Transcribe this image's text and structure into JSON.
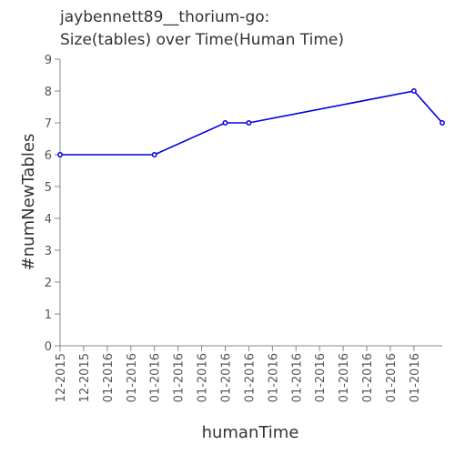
{
  "chart_data": {
    "type": "line",
    "title_lines": [
      "jaybennett89__thorium-go:",
      "Size(tables) over Time(Human Time)"
    ],
    "xlabel": "humanTime",
    "ylabel": "#numNewTables",
    "ylim": [
      0,
      9
    ],
    "y_ticks": [
      0,
      1,
      2,
      3,
      4,
      5,
      6,
      7,
      8,
      9
    ],
    "x_tick_labels": [
      "12-2015",
      "12-2015",
      "01-2016",
      "01-2016",
      "01-2016",
      "01-2016",
      "01-2016",
      "01-2016",
      "01-2016",
      "01-2016",
      "01-2016",
      "01-2016",
      "01-2016",
      "01-2016",
      "01-2016",
      "01-2016"
    ],
    "x_range": [
      0,
      16.2
    ],
    "series": [
      {
        "color": "#0000dd",
        "x": [
          0,
          4,
          7,
          8,
          15,
          16.2
        ],
        "y": [
          6,
          6,
          7,
          7,
          8,
          7
        ]
      }
    ],
    "grid": false,
    "legend": "none"
  }
}
